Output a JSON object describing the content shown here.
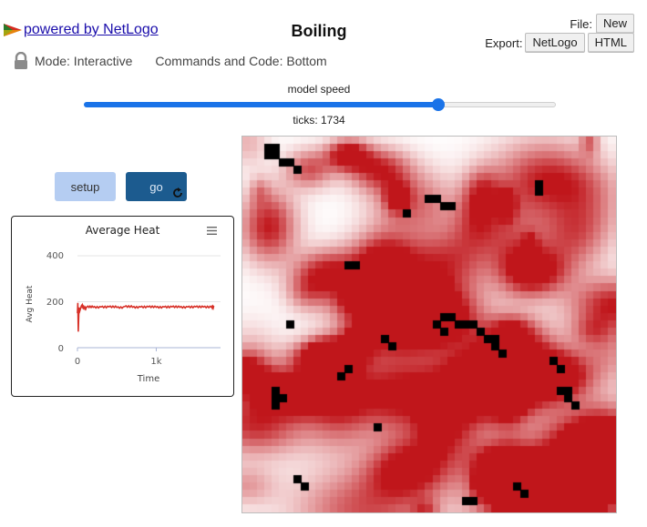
{
  "header": {
    "powered_by": "powered by NetLogo",
    "title": "Boiling",
    "file_label": "File:",
    "new_label": "New",
    "export_label": "Export:",
    "export_netlogo": "NetLogo",
    "export_html": "HTML"
  },
  "mode": {
    "mode_text": "Mode: Interactive",
    "commands_text": "Commands and Code: Bottom"
  },
  "speed": {
    "label": "model speed",
    "value": 0.75
  },
  "ticks_text": "ticks: 1734",
  "buttons": {
    "setup": "setup",
    "go": "go"
  },
  "plot": {
    "title": "Average Heat",
    "ylabel": "Avg Heat",
    "xlabel": "Time",
    "y_ticks": [
      "400",
      "200",
      "0"
    ],
    "x_ticks": [
      "0",
      "1k"
    ]
  },
  "chart_data": {
    "type": "line",
    "title": "Average Heat",
    "xlabel": "Time",
    "ylabel": "Avg Heat",
    "xlim": [
      0,
      1734
    ],
    "ylim": [
      0,
      400
    ],
    "series": [
      {
        "color": "#d73027",
        "x": [
          0,
          5,
          10,
          20,
          30,
          50,
          80,
          120,
          200,
          300,
          400,
          500,
          600,
          700,
          800,
          900,
          1000,
          1100,
          1200,
          1300,
          1400,
          1500,
          1600,
          1700,
          1734
        ],
        "y": [
          150,
          195,
          70,
          175,
          160,
          182,
          172,
          178,
          176,
          177,
          178,
          175,
          179,
          176,
          177,
          178,
          176,
          177,
          178,
          176,
          177,
          178,
          177,
          176,
          177
        ]
      }
    ]
  },
  "colors": {
    "link": "#1a0dab",
    "slider": "#1a73e8",
    "setup_bg": "#b5cdf2",
    "go_bg": "#1c5b8f",
    "plot_line": "#d73027",
    "heat_base": "#ffffff",
    "heat_hot": "#c0161b",
    "bubble": "#000000"
  }
}
